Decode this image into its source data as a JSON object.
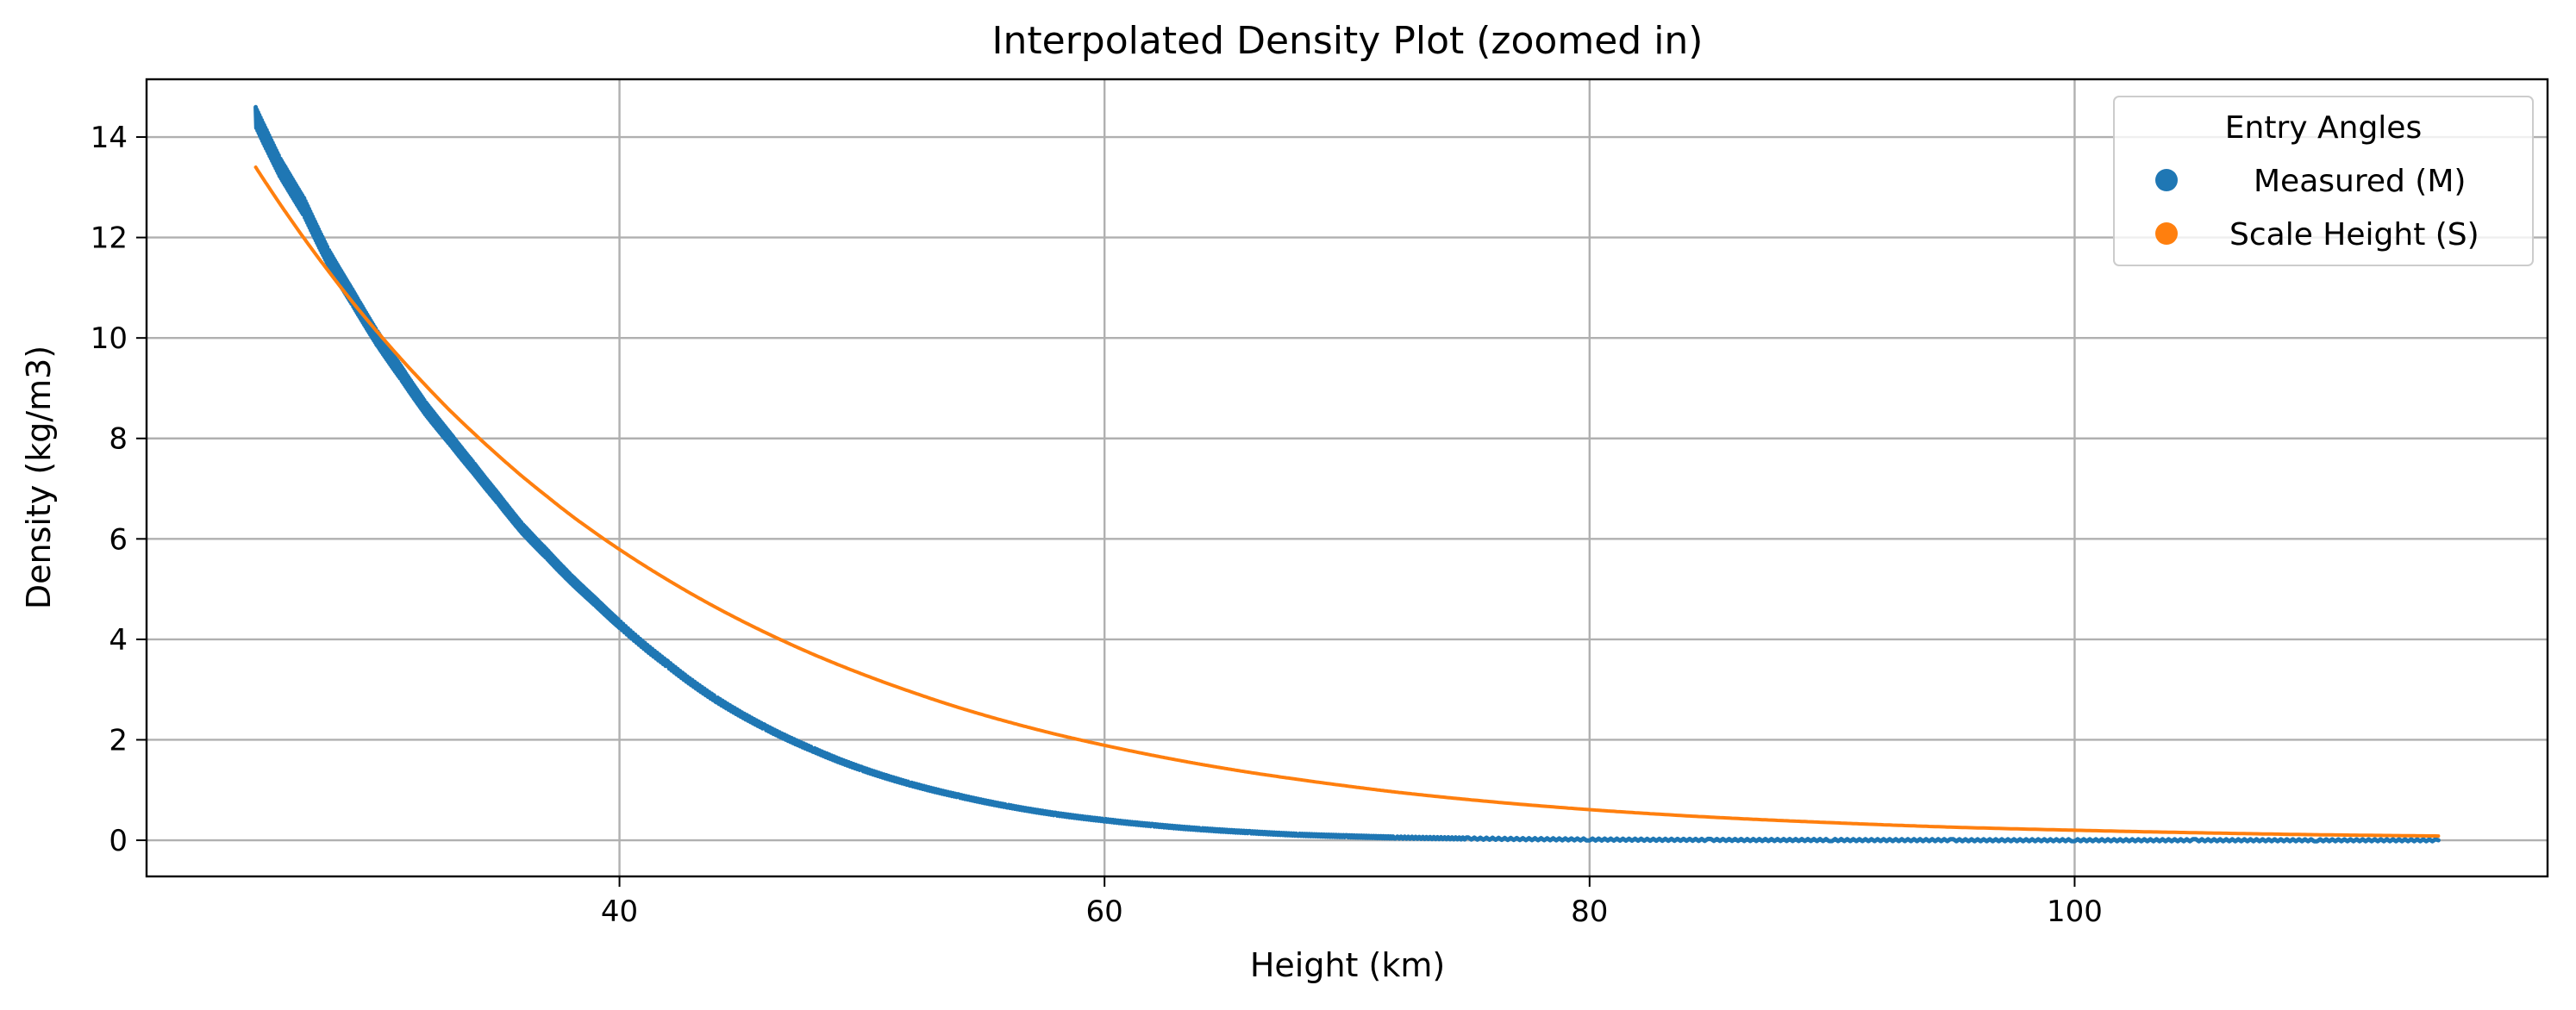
{
  "chart_data": {
    "type": "line",
    "title": "Interpolated Density Plot (zoomed in)",
    "xlabel": "Height (km)",
    "ylabel": "Density (kg/m3)",
    "xlim": [
      20.5,
      119.5
    ],
    "ylim": [
      -0.72,
      15.15
    ],
    "xticks": [
      40,
      60,
      80,
      100
    ],
    "yticks": [
      0,
      2,
      4,
      6,
      8,
      10,
      12,
      14
    ],
    "grid": true,
    "legend": {
      "title": "Entry Angles",
      "position": "top-right",
      "marker": "circle"
    },
    "series": [
      {
        "name": "Measured (M)",
        "color": "#1f77b4",
        "style": "jagged",
        "x": [
          25,
          26,
          27,
          28,
          29,
          30,
          31,
          32,
          33,
          34,
          35,
          36,
          37,
          38,
          39,
          40,
          42,
          44,
          46,
          48,
          50,
          52,
          54,
          56,
          58,
          60,
          62,
          64,
          66,
          68,
          70,
          72,
          75,
          80,
          85,
          90,
          95,
          100,
          105,
          110,
          115
        ],
        "y": [
          14.4,
          13.4,
          12.6,
          11.6,
          10.8,
          10.0,
          9.3,
          8.6,
          8.0,
          7.4,
          6.8,
          6.2,
          5.7,
          5.2,
          4.75,
          4.3,
          3.5,
          2.8,
          2.25,
          1.8,
          1.42,
          1.12,
          0.88,
          0.68,
          0.52,
          0.4,
          0.3,
          0.22,
          0.16,
          0.11,
          0.08,
          0.055,
          0.035,
          0.015,
          0.007,
          0.004,
          0.002,
          0.001,
          0.0005,
          0.0002,
          0.0001
        ]
      },
      {
        "name": "Scale Height (S)",
        "color": "#ff7f0e",
        "style": "smooth",
        "x": [
          25,
          26,
          27,
          28,
          29,
          30,
          31,
          32,
          33,
          34,
          35,
          36,
          37,
          38,
          39,
          40,
          42,
          44,
          46,
          48,
          50,
          52,
          54,
          56,
          58,
          60,
          62,
          64,
          66,
          68,
          70,
          72,
          75,
          80,
          85,
          90,
          95,
          100,
          105,
          110,
          115
        ],
        "y": [
          13.4,
          12.67,
          11.98,
          11.33,
          10.71,
          10.13,
          9.58,
          9.06,
          8.56,
          8.1,
          7.66,
          7.24,
          6.85,
          6.47,
          6.12,
          5.79,
          5.18,
          4.63,
          4.14,
          3.7,
          3.31,
          2.96,
          2.64,
          2.36,
          2.11,
          1.89,
          1.69,
          1.51,
          1.35,
          1.21,
          1.08,
          0.96,
          0.81,
          0.61,
          0.46,
          0.35,
          0.26,
          0.2,
          0.15,
          0.11,
          0.085
        ]
      }
    ]
  }
}
